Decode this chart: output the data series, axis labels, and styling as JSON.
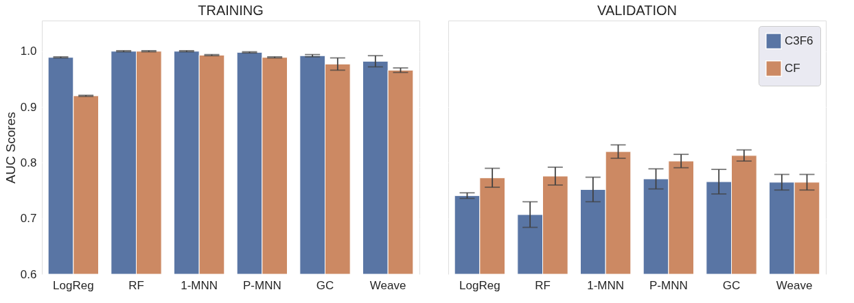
{
  "chart_data": [
    {
      "type": "bar",
      "title": "TRAINING",
      "ylabel": "AUC Scores",
      "categories": [
        "LogReg",
        "RF",
        "1-MNN",
        "P-MNN",
        "GC",
        "Weave"
      ],
      "series": [
        {
          "color": "#5975a4",
          "values": [
            0.989,
            1.0,
            1.0,
            0.998,
            0.992,
            0.982
          ],
          "errors": [
            0.001,
            0.001,
            0.001,
            0.001,
            0.002,
            0.01
          ]
        },
        {
          "color": "#cc8963",
          "values": [
            0.92,
            1.0,
            0.993,
            0.989,
            0.977,
            0.966
          ],
          "errors": [
            0.001,
            0.001,
            0.001,
            0.001,
            0.011,
            0.004
          ]
        }
      ],
      "ylim": [
        0.6,
        1.055
      ],
      "yticks": [
        0.6,
        0.7,
        0.8,
        0.9,
        {
          "value": 1,
          "label": "1.0"
        }
      ],
      "grid": "y",
      "legend": false
    },
    {
      "type": "bar",
      "title": "VALIDATION",
      "categories": [
        "LogReg",
        "RF",
        "1-MNN",
        "P-MNN",
        "GC",
        "Weave"
      ],
      "series": [
        {
          "name": "C3F6",
          "color": "#5975a4",
          "values": [
            0.741,
            0.707,
            0.752,
            0.771,
            0.766,
            0.765
          ],
          "errors": [
            0.005,
            0.023,
            0.022,
            0.018,
            0.022,
            0.014
          ]
        },
        {
          "name": "CF",
          "color": "#cc8963",
          "values": [
            0.773,
            0.776,
            0.82,
            0.803,
            0.813,
            0.765
          ],
          "errors": [
            0.017,
            0.016,
            0.012,
            0.012,
            0.01,
            0.014
          ]
        }
      ],
      "ylim": [
        0.6,
        1.055
      ],
      "yticks": [
        0.6,
        0.7,
        0.8,
        0.9,
        1
      ],
      "grid": "y",
      "legend": "top right",
      "tick_labels": "x"
    }
  ]
}
